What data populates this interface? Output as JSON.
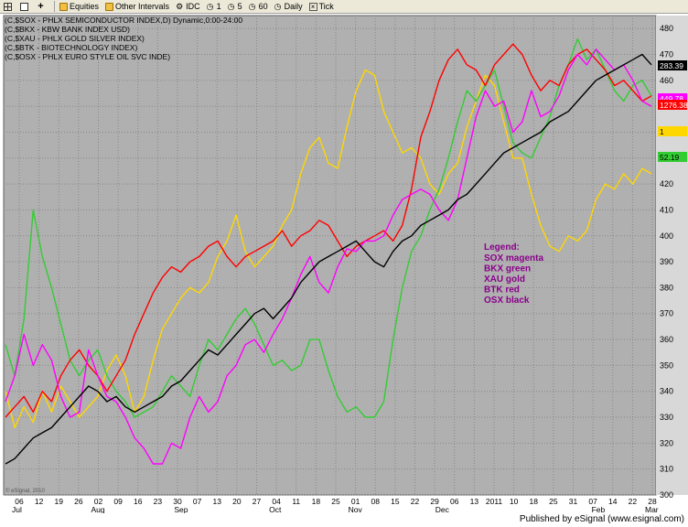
{
  "toolbar": {
    "items": [
      "Equities",
      "Other Intervals",
      "IDC",
      "1",
      "5",
      "60",
      "Daily",
      "Tick"
    ]
  },
  "footer": {
    "text": "Published by eSignal (www.esignal.com)"
  },
  "colors": {
    "sox": "#ff00ff",
    "bkx": "#33cc33",
    "xau": "#ffd700",
    "btk": "#ff0000",
    "osx": "#000000",
    "plot_bg": "#b0b0b0"
  },
  "chart_data": {
    "type": "line",
    "title_lines": [
      "(C,$SOX - PHLX SEMICONDUCTOR INDEX,D) Dynamic,0:00-24:00",
      "(C,$BKX - KBW BANK INDEX USD)",
      "(C,$XAU - PHLX GOLD SILVER INDEX)",
      "(C,$BTK - BIOTECHNOLOGY INDEX)",
      "(C,$OSX - PHLX EURO STYLE OIL SVC INDE)"
    ],
    "ylim": [
      300,
      485
    ],
    "y_ticks": [
      300,
      310,
      320,
      330,
      340,
      350,
      360,
      370,
      380,
      390,
      400,
      410,
      420,
      430,
      440,
      450,
      460,
      470,
      480
    ],
    "x_tick_labels": [
      "06",
      "12",
      "19",
      "26",
      "02",
      "09",
      "16",
      "23",
      "30",
      "07",
      "13",
      "20",
      "27",
      "04",
      "11",
      "18",
      "25",
      "01",
      "08",
      "15",
      "22",
      "29",
      "06",
      "13",
      "2011",
      "10",
      "18",
      "25",
      "31",
      "07",
      "14",
      "22",
      "28"
    ],
    "month_labels": [
      "Jul",
      "Aug",
      "Sep",
      "Oct",
      "Nov",
      "Dec",
      "Feb",
      "Mar"
    ],
    "last_values": {
      "osx": "283.39",
      "sox": "449.78",
      "btk": "1276.38",
      "xau": "1",
      "bkx": "52.19"
    },
    "legend": {
      "title": "Legend:",
      "entries": [
        "SOX magenta",
        "BKX green",
        "XAU gold",
        "BTK red",
        "OSX black"
      ]
    },
    "watermark": "© eSignal, 2010",
    "series": [
      {
        "key": "sox",
        "values": [
          336,
          346,
          362,
          350,
          358,
          352,
          338,
          330,
          332,
          356,
          346,
          338,
          336,
          330,
          322,
          318,
          312,
          312,
          320,
          318,
          330,
          338,
          332,
          336,
          346,
          350,
          358,
          360,
          355,
          362,
          368,
          376,
          385,
          392,
          382,
          378,
          388,
          395,
          394,
          398,
          398,
          400,
          408,
          414,
          416,
          418,
          416,
          410,
          406,
          414,
          430,
          446,
          456,
          450,
          452,
          440,
          444,
          456,
          446,
          448,
          454,
          464,
          470,
          466,
          472,
          468,
          464,
          466,
          460,
          452,
          450
        ]
      },
      {
        "key": "bkx",
        "values": [
          358,
          346,
          368,
          410,
          392,
          380,
          366,
          352,
          346,
          352,
          356,
          346,
          340,
          336,
          330,
          332,
          334,
          340,
          346,
          342,
          338,
          350,
          360,
          356,
          362,
          368,
          372,
          366,
          358,
          350,
          352,
          348,
          350,
          360,
          360,
          348,
          338,
          332,
          334,
          330,
          330,
          336,
          360,
          380,
          394,
          400,
          410,
          418,
          430,
          444,
          456,
          452,
          458,
          464,
          450,
          436,
          432,
          430,
          438,
          446,
          458,
          466,
          476,
          468,
          472,
          464,
          456,
          452,
          458,
          460,
          454
        ]
      },
      {
        "key": "xau",
        "values": [
          340,
          326,
          334,
          328,
          340,
          332,
          342,
          336,
          330,
          334,
          338,
          348,
          354,
          346,
          332,
          338,
          352,
          364,
          370,
          376,
          380,
          378,
          382,
          392,
          398,
          408,
          394,
          388,
          392,
          396,
          404,
          410,
          424,
          434,
          438,
          428,
          426,
          442,
          456,
          464,
          462,
          448,
          440,
          432,
          434,
          430,
          420,
          416,
          424,
          428,
          442,
          452,
          462,
          458,
          444,
          430,
          430,
          416,
          404,
          396,
          394,
          400,
          398,
          402,
          414,
          420,
          418,
          424,
          420,
          426,
          424
        ]
      },
      {
        "key": "btk",
        "values": [
          330,
          334,
          338,
          332,
          340,
          336,
          346,
          352,
          356,
          350,
          346,
          340,
          346,
          352,
          362,
          370,
          378,
          384,
          388,
          386,
          390,
          392,
          396,
          398,
          392,
          388,
          392,
          394,
          396,
          398,
          402,
          396,
          400,
          402,
          406,
          404,
          398,
          392,
          396,
          398,
          400,
          402,
          398,
          404,
          418,
          438,
          448,
          460,
          468,
          472,
          466,
          464,
          458,
          466,
          470,
          474,
          470,
          462,
          456,
          460,
          458,
          466,
          470,
          472,
          468,
          464,
          458,
          460,
          456,
          452,
          454
        ]
      },
      {
        "key": "osx",
        "values": [
          312,
          314,
          318,
          322,
          324,
          326,
          330,
          334,
          338,
          342,
          340,
          336,
          338,
          334,
          332,
          334,
          336,
          338,
          342,
          344,
          348,
          352,
          356,
          354,
          358,
          362,
          366,
          370,
          372,
          368,
          372,
          376,
          382,
          386,
          390,
          392,
          394,
          396,
          398,
          394,
          390,
          388,
          394,
          398,
          400,
          404,
          406,
          408,
          410,
          414,
          416,
          420,
          424,
          428,
          432,
          434,
          436,
          438,
          440,
          444,
          446,
          448,
          452,
          456,
          460,
          462,
          464,
          466,
          468,
          470,
          466
        ]
      }
    ]
  }
}
